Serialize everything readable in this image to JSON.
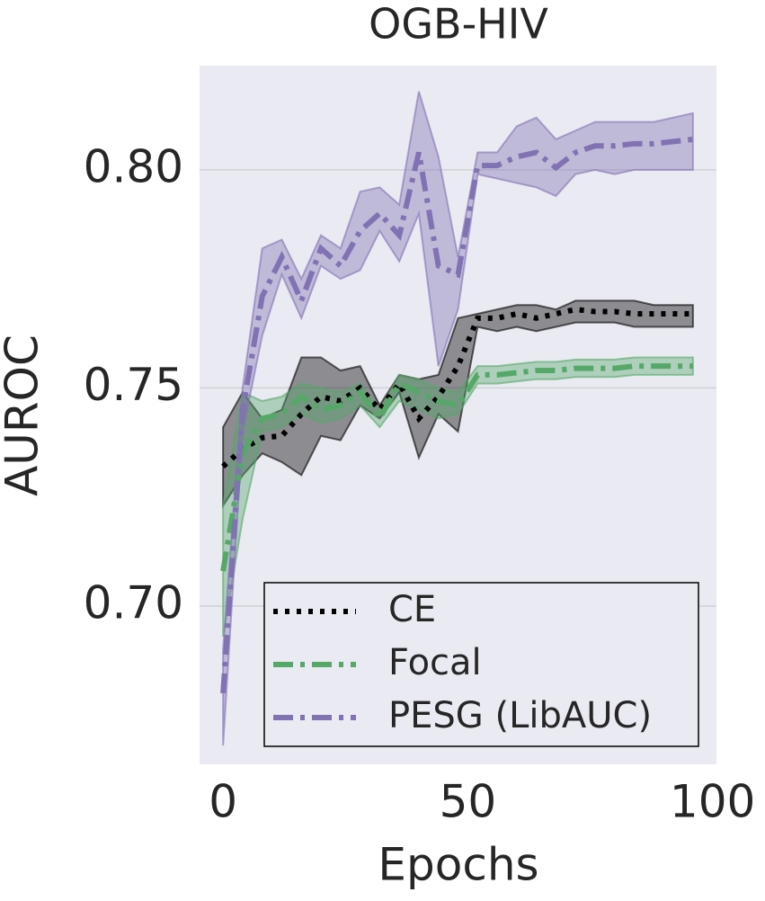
{
  "chart_data": {
    "type": "line",
    "title": "OGB-HIV",
    "xlabel": "Epochs",
    "ylabel": "AUROC",
    "x": [
      0,
      4,
      8,
      12,
      16,
      20,
      24,
      28,
      32,
      36,
      40,
      44,
      48,
      52,
      56,
      60,
      64,
      68,
      72,
      76,
      80,
      84,
      88,
      92,
      96
    ],
    "xlim": [
      -4.8,
      100.8
    ],
    "xticks": [
      0,
      50,
      100
    ],
    "ylim": [
      0.6637,
      0.8239
    ],
    "yticks": [
      {
        "value": 0.7,
        "label": "0.70"
      },
      {
        "value": 0.75,
        "label": "0.75"
      },
      {
        "value": 0.8,
        "label": "0.80"
      }
    ],
    "grid": "y",
    "legend": "lower right",
    "series": [
      {
        "name": "CE",
        "color": "#000000",
        "linestyle": "dotted",
        "values": [
          0.732,
          0.736,
          0.7386,
          0.739,
          0.744,
          0.748,
          0.747,
          0.75,
          0.745,
          0.751,
          0.743,
          0.748,
          0.755,
          0.766,
          0.766,
          0.767,
          0.766,
          0.767,
          0.768,
          0.7675,
          0.7675,
          0.767,
          0.767,
          0.767,
          0.767
        ],
        "lower": [
          0.723,
          0.73,
          0.735,
          0.733,
          0.73,
          0.739,
          0.738,
          0.746,
          0.743,
          0.749,
          0.734,
          0.744,
          0.74,
          0.764,
          0.763,
          0.764,
          0.763,
          0.764,
          0.765,
          0.765,
          0.765,
          0.764,
          0.764,
          0.764,
          0.764
        ],
        "upper": [
          0.741,
          0.749,
          0.743,
          0.745,
          0.757,
          0.757,
          0.754,
          0.755,
          0.746,
          0.753,
          0.752,
          0.753,
          0.766,
          0.767,
          0.768,
          0.769,
          0.769,
          0.768,
          0.77,
          0.77,
          0.77,
          0.77,
          0.769,
          0.769,
          0.769
        ]
      },
      {
        "name": "Focal",
        "color": "#55a868",
        "linestyle": "dashdot",
        "values": [
          0.708,
          0.735,
          0.743,
          0.744,
          0.748,
          0.745,
          0.746,
          0.749,
          0.743,
          0.751,
          0.749,
          0.747,
          0.746,
          0.753,
          0.753,
          0.7535,
          0.754,
          0.754,
          0.7545,
          0.7545,
          0.7545,
          0.755,
          0.755,
          0.755,
          0.755
        ],
        "lower": [
          0.693,
          0.72,
          0.74,
          0.741,
          0.744,
          0.742,
          0.743,
          0.746,
          0.741,
          0.747,
          0.745,
          0.743,
          0.744,
          0.751,
          0.751,
          0.7515,
          0.752,
          0.752,
          0.7525,
          0.7525,
          0.7525,
          0.753,
          0.753,
          0.753,
          0.753
        ],
        "upper": [
          0.723,
          0.749,
          0.747,
          0.748,
          0.751,
          0.75,
          0.749,
          0.751,
          0.745,
          0.753,
          0.752,
          0.75,
          0.749,
          0.755,
          0.755,
          0.7555,
          0.756,
          0.756,
          0.7565,
          0.7565,
          0.7565,
          0.757,
          0.757,
          0.757,
          0.757
        ]
      },
      {
        "name": "PESG (LibAUC)",
        "color": "#8172b3",
        "linestyle": "dashdot",
        "values": [
          0.68,
          0.745,
          0.771,
          0.78,
          0.77,
          0.782,
          0.778,
          0.786,
          0.79,
          0.785,
          0.804,
          0.778,
          0.776,
          0.801,
          0.801,
          0.803,
          0.804,
          0.8005,
          0.804,
          0.8055,
          0.8055,
          0.806,
          0.806,
          0.8065,
          0.807
        ],
        "lower": [
          0.668,
          0.74,
          0.762,
          0.776,
          0.766,
          0.778,
          0.775,
          0.777,
          0.786,
          0.779,
          0.79,
          0.755,
          0.768,
          0.799,
          0.798,
          0.797,
          0.796,
          0.794,
          0.799,
          0.8,
          0.799,
          0.8,
          0.8,
          0.8,
          0.8
        ],
        "upper": [
          0.69,
          0.75,
          0.782,
          0.784,
          0.775,
          0.785,
          0.782,
          0.795,
          0.796,
          0.792,
          0.818,
          0.803,
          0.78,
          0.804,
          0.804,
          0.81,
          0.812,
          0.807,
          0.809,
          0.811,
          0.811,
          0.811,
          0.811,
          0.812,
          0.813
        ]
      }
    ]
  }
}
